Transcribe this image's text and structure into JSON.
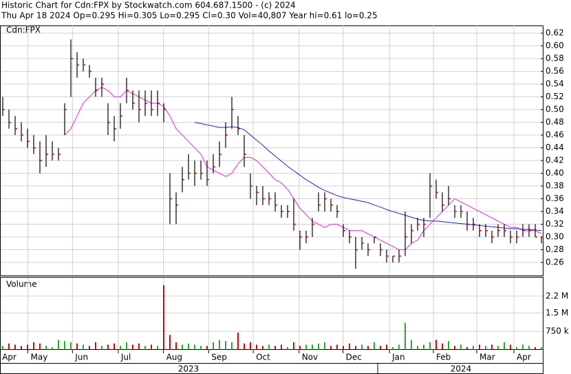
{
  "chart_data": {
    "type": "ohlc",
    "title": "Historic Chart for Cdn:FPX by Stockwatch.com 604.687.1500 - (c) 2024",
    "subtitle": "Thu Apr 18 2024  Op=0.295  Hi=0.305  Lo=0.295  Cl=0.30  Vol=40,807  Year hi=0.61  lo=0.25",
    "symbol": "Cdn:FPX",
    "volume_label": "Volume",
    "up_color": "#22aa22",
    "down_color": "#cc0000",
    "bar_color": "#000000",
    "tick_color": "#cc0000",
    "grid": true,
    "high": [
      0.52,
      0.5,
      0.49,
      0.48,
      0.47,
      0.46,
      0.45,
      0.46,
      0.45,
      0.44,
      0.51,
      0.61,
      0.59,
      0.58,
      0.57,
      0.55,
      0.55,
      0.51,
      0.49,
      0.51,
      0.55,
      0.53,
      0.53,
      0.53,
      0.53,
      0.53,
      0.51,
      0.4,
      0.37,
      0.41,
      0.43,
      0.42,
      0.42,
      0.42,
      0.43,
      0.45,
      0.48,
      0.52,
      0.49,
      0.46,
      0.4,
      0.38,
      0.38,
      0.37,
      0.37,
      0.35,
      0.35,
      0.36,
      0.31,
      0.31,
      0.33,
      0.37,
      0.37,
      0.36,
      0.35,
      0.32,
      0.31,
      0.3,
      0.3,
      0.29,
      0.3,
      0.29,
      0.28,
      0.27,
      0.28,
      0.34,
      0.32,
      0.33,
      0.33,
      0.4,
      0.39,
      0.37,
      0.38,
      0.35,
      0.35,
      0.34,
      0.33,
      0.32,
      0.32,
      0.31,
      0.32,
      0.32,
      0.31,
      0.31,
      0.32,
      0.32,
      0.32,
      0.3
    ],
    "low": [
      0.49,
      0.47,
      0.46,
      0.45,
      0.44,
      0.43,
      0.4,
      0.41,
      0.42,
      0.42,
      0.46,
      0.52,
      0.55,
      0.56,
      0.55,
      0.52,
      0.52,
      0.46,
      0.45,
      0.47,
      0.51,
      0.5,
      0.48,
      0.49,
      0.49,
      0.49,
      0.48,
      0.32,
      0.32,
      0.37,
      0.39,
      0.38,
      0.39,
      0.38,
      0.4,
      0.41,
      0.44,
      0.47,
      0.46,
      0.41,
      0.36,
      0.35,
      0.35,
      0.35,
      0.34,
      0.33,
      0.33,
      0.31,
      0.28,
      0.29,
      0.3,
      0.34,
      0.34,
      0.34,
      0.33,
      0.3,
      0.29,
      0.25,
      0.28,
      0.27,
      0.29,
      0.27,
      0.26,
      0.26,
      0.26,
      0.27,
      0.29,
      0.31,
      0.3,
      0.33,
      0.36,
      0.34,
      0.35,
      0.33,
      0.33,
      0.31,
      0.31,
      0.3,
      0.3,
      0.29,
      0.3,
      0.3,
      0.29,
      0.29,
      0.3,
      0.3,
      0.3,
      0.29
    ],
    "close": [
      0.5,
      0.48,
      0.47,
      0.46,
      0.45,
      0.44,
      0.42,
      0.43,
      0.43,
      0.43,
      0.5,
      0.58,
      0.57,
      0.57,
      0.56,
      0.53,
      0.54,
      0.48,
      0.47,
      0.49,
      0.53,
      0.51,
      0.5,
      0.51,
      0.5,
      0.51,
      0.5,
      0.36,
      0.35,
      0.39,
      0.4,
      0.4,
      0.4,
      0.39,
      0.41,
      0.43,
      0.46,
      0.5,
      0.47,
      0.43,
      0.38,
      0.37,
      0.36,
      0.36,
      0.35,
      0.34,
      0.34,
      0.32,
      0.3,
      0.3,
      0.32,
      0.35,
      0.36,
      0.35,
      0.34,
      0.31,
      0.3,
      0.28,
      0.29,
      0.28,
      0.3,
      0.28,
      0.27,
      0.27,
      0.27,
      0.3,
      0.31,
      0.32,
      0.32,
      0.38,
      0.37,
      0.35,
      0.36,
      0.34,
      0.34,
      0.32,
      0.32,
      0.31,
      0.31,
      0.3,
      0.31,
      0.31,
      0.3,
      0.3,
      0.31,
      0.31,
      0.3,
      0.3
    ],
    "ma_short": {
      "color": "#e020e0",
      "values": [
        null,
        null,
        null,
        null,
        null,
        null,
        null,
        null,
        null,
        null,
        0.46,
        0.47,
        0.49,
        0.51,
        0.52,
        0.53,
        0.535,
        0.53,
        0.52,
        0.52,
        0.53,
        0.525,
        0.52,
        0.515,
        0.51,
        0.51,
        0.505,
        0.49,
        0.47,
        0.46,
        0.45,
        0.44,
        0.43,
        0.41,
        0.405,
        0.4,
        0.395,
        0.4,
        0.415,
        0.425,
        0.425,
        0.42,
        0.41,
        0.4,
        0.39,
        0.385,
        0.375,
        0.36,
        0.345,
        0.335,
        0.325,
        0.32,
        0.315,
        0.32,
        0.32,
        0.315,
        0.31,
        0.31,
        0.31,
        0.305,
        0.3,
        0.295,
        0.29,
        0.285,
        0.28,
        0.28,
        0.29,
        0.295,
        0.31,
        0.32,
        0.33,
        0.34,
        0.35,
        0.36,
        0.355,
        0.35,
        0.345,
        0.34,
        0.335,
        0.33,
        0.325,
        0.32,
        0.315,
        0.315,
        0.31,
        0.31,
        0.31,
        0.305
      ]
    },
    "ma_long": {
      "color": "#2020c0",
      "values": [
        null,
        null,
        null,
        null,
        null,
        null,
        null,
        null,
        null,
        null,
        null,
        null,
        null,
        null,
        null,
        null,
        null,
        null,
        null,
        null,
        null,
        null,
        null,
        null,
        null,
        null,
        null,
        null,
        null,
        null,
        null,
        0.48,
        0.478,
        0.476,
        0.474,
        0.472,
        0.472,
        0.473,
        0.472,
        0.468,
        0.46,
        0.452,
        0.444,
        0.435,
        0.427,
        0.419,
        0.411,
        0.404,
        0.397,
        0.39,
        0.384,
        0.378,
        0.373,
        0.369,
        0.365,
        0.362,
        0.36,
        0.358,
        0.356,
        0.354,
        0.35,
        0.347,
        0.343,
        0.34,
        0.337,
        0.334,
        0.331,
        0.328,
        0.326,
        0.325,
        0.325,
        0.324,
        0.323,
        0.322,
        0.321,
        0.32,
        0.319,
        0.318,
        0.317,
        0.316,
        0.315,
        0.314,
        0.313,
        0.313,
        0.312,
        0.312,
        0.311,
        0.31
      ]
    },
    "volume": [
      150000,
      250000,
      200000,
      150000,
      200000,
      300000,
      250000,
      150000,
      100000,
      400000,
      350000,
      300000,
      250000,
      200000,
      150000,
      300000,
      150000,
      200000,
      250000,
      150000,
      300000,
      200000,
      250000,
      150000,
      200000,
      150000,
      2650000,
      600000,
      300000,
      200000,
      250000,
      200000,
      150000,
      150000,
      300000,
      400000,
      350000,
      300000,
      700000,
      250000,
      300000,
      200000,
      150000,
      200000,
      150000,
      200000,
      100000,
      300000,
      150000,
      200000,
      200000,
      250000,
      300000,
      150000,
      200000,
      150000,
      250000,
      150000,
      200000,
      150000,
      300000,
      150000,
      200000,
      100000,
      200000,
      1100000,
      400000,
      150000,
      200000,
      300000,
      400000,
      250000,
      350000,
      150000,
      200000,
      100000,
      150000,
      200000,
      150000,
      200000,
      150000,
      300000,
      200000,
      100000,
      200000,
      150000,
      100000,
      100000
    ],
    "ylim": [
      0.2395,
      0.632
    ],
    "yticks": [
      0.26,
      0.28,
      {
        "value": 0.3,
        "label": "0.30"
      },
      0.32,
      0.34,
      0.36,
      0.38,
      {
        "value": 0.4,
        "label": "0.40"
      },
      0.42,
      0.44,
      0.46,
      0.48,
      {
        "value": 0.5,
        "label": "0.50"
      },
      0.52,
      0.54,
      0.56,
      0.58,
      {
        "value": 0.6,
        "label": "0.60"
      },
      0.62
    ],
    "vlim": [
      0,
      2960000
    ],
    "vticks": [
      {
        "value": 750000,
        "label": "750 k"
      },
      {
        "value": 1500000,
        "label": "1.5 M"
      },
      {
        "value": 2200000,
        "label": "2.2 M"
      }
    ],
    "xticks": [
      {
        "value": -0.1,
        "label": "Apr"
      },
      {
        "value": 4.5,
        "label": "May"
      },
      {
        "value": 11.7,
        "label": "Jun"
      },
      {
        "value": 19.1,
        "label": "Jul"
      },
      {
        "value": 26.4,
        "label": "Aug"
      },
      {
        "value": 33.7,
        "label": "Sep"
      },
      {
        "value": 40.9,
        "label": "Oct"
      },
      {
        "value": 48.3,
        "label": "Nov"
      },
      {
        "value": 55.4,
        "label": "Dec"
      },
      {
        "value": 62.9,
        "label": "Jan"
      },
      {
        "value": 70,
        "label": "Feb"
      },
      {
        "value": 77,
        "label": "Mar"
      },
      {
        "value": 83,
        "label": "Apr"
      }
    ],
    "years": [
      {
        "value": 30,
        "label": "2023"
      },
      {
        "value": 74,
        "label": "2024"
      }
    ],
    "year_break": 61
  }
}
